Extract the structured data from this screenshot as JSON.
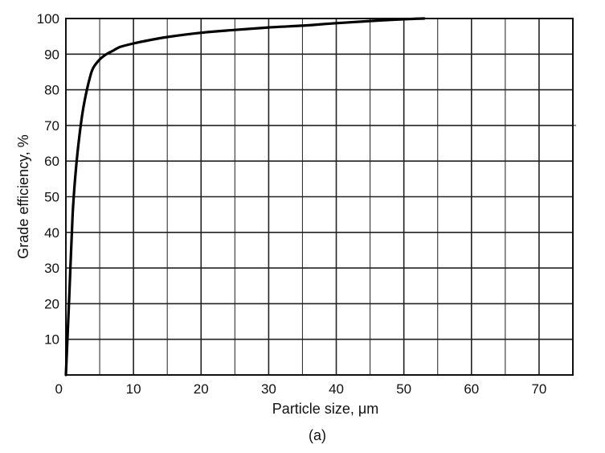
{
  "chart_data": {
    "type": "line",
    "title": "",
    "xlabel": "Particle size,  μm",
    "ylabel": "Grade efficiency,  %",
    "caption": "(a)",
    "xlim": [
      0,
      75
    ],
    "ylim": [
      0,
      100
    ],
    "xticks": [
      0,
      10,
      20,
      30,
      40,
      50,
      60,
      70
    ],
    "yticks": [
      10,
      20,
      30,
      40,
      50,
      60,
      70,
      80,
      90,
      100
    ],
    "grid": true,
    "x_grid_step": 5,
    "y_grid_step": 10,
    "series": [
      {
        "x": [
          0,
          0.5,
          1,
          1.5,
          2,
          2.5,
          3,
          3.5,
          4,
          5,
          6,
          7,
          8,
          10,
          12,
          15,
          20,
          25,
          30,
          35,
          40,
          45,
          50,
          53
        ],
        "y": [
          0,
          22,
          45,
          58,
          67,
          74,
          79,
          83,
          86,
          88.5,
          90,
          91,
          92,
          93,
          93.8,
          94.8,
          96,
          96.8,
          97.5,
          98,
          98.7,
          99.3,
          99.8,
          100
        ]
      }
    ]
  }
}
